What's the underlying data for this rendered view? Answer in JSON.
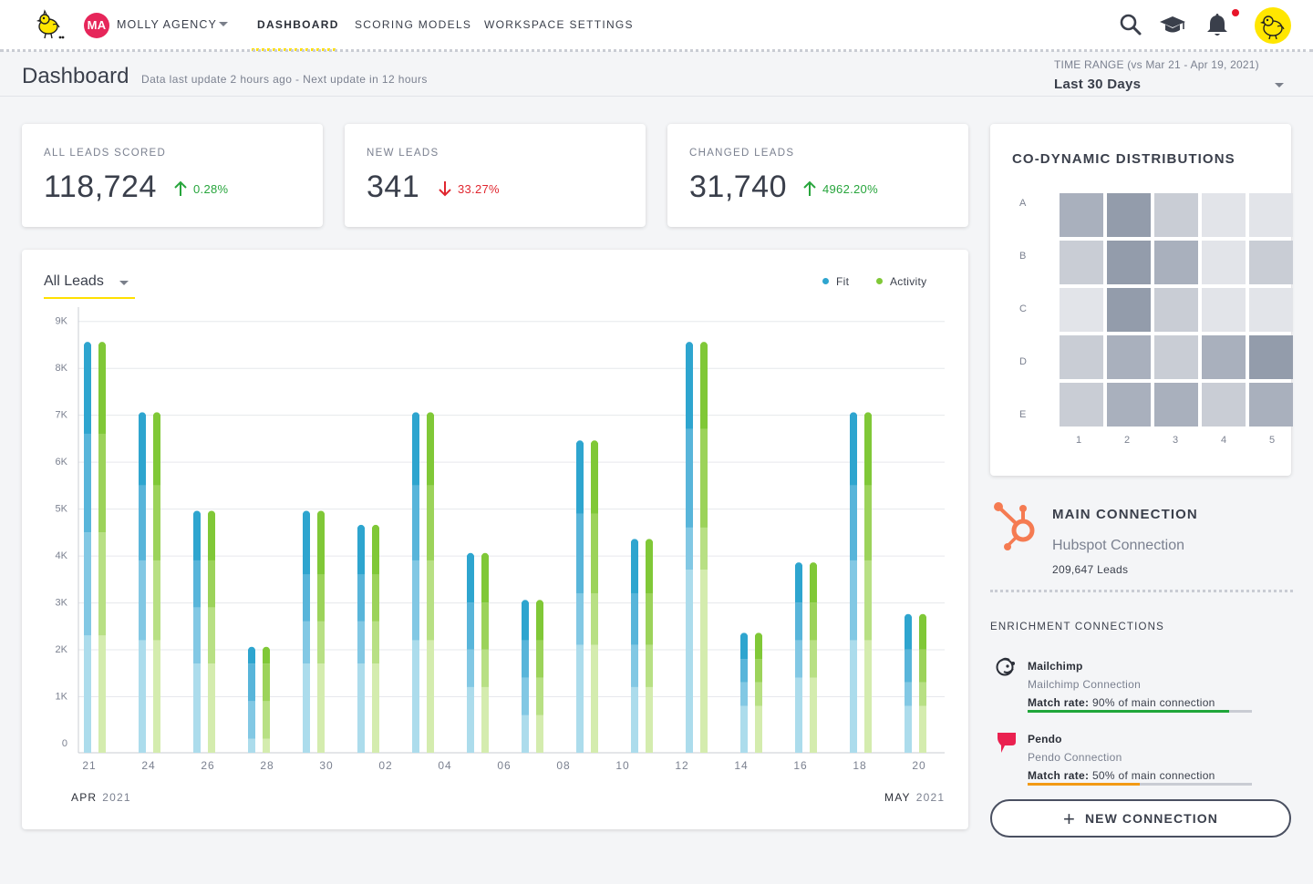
{
  "nav": {
    "agency_initials": "MA",
    "agency_name": "MOLLY AGENCY",
    "tabs": [
      {
        "label": "DASHBOARD",
        "active": true
      },
      {
        "label": "SCORING MODELS",
        "active": false
      },
      {
        "label": "WORKSPACE SETTINGS",
        "active": false
      }
    ],
    "icons": [
      "search-icon",
      "graduation-cap-icon",
      "bell-icon"
    ],
    "notification_dot_color": "#e8152a"
  },
  "header": {
    "title": "Dashboard",
    "subtitle": "Data last update 2 hours ago - Next update in 12 hours",
    "time_range_label": "TIME RANGE (vs Mar 21 - Apr 19, 2021)",
    "time_range_value": "Last 30 Days"
  },
  "stats": [
    {
      "label": "ALL LEADS SCORED",
      "value": "118,724",
      "change": "0.28%",
      "direction": "up"
    },
    {
      "label": "NEW LEADS",
      "value": "341",
      "change": "33.27%",
      "direction": "down"
    },
    {
      "label": "CHANGED LEADS",
      "value": "31,740",
      "change": "4962.20%",
      "direction": "up"
    }
  ],
  "chart_panel": {
    "filter_label": "All Leads",
    "month_start": "APR",
    "month_start_year": "2021",
    "month_end": "MAY",
    "month_end_year": "2021"
  },
  "chart_data": {
    "type": "bar",
    "stacked": true,
    "x_ticks": [
      "21",
      "24",
      "26",
      "28",
      "30",
      "02",
      "04",
      "06",
      "08",
      "10",
      "12",
      "14",
      "16",
      "18",
      "20"
    ],
    "y_ticks": [
      "0",
      "1K",
      "2K",
      "3K",
      "4K",
      "5K",
      "6K",
      "7K",
      "8K",
      "9K"
    ],
    "ylim": [
      0,
      9500
    ],
    "legend": [
      "Fit",
      "Activity"
    ],
    "legend_position": "top-right",
    "colors": {
      "fit": [
        "#acdcec",
        "#82c8e4",
        "#58b5da",
        "#2ea5cf"
      ],
      "activity": [
        "#d4ecae",
        "#b8e084",
        "#9cd35a",
        "#80c837"
      ]
    },
    "series": [
      {
        "name": "Fit",
        "values": [
          [
            2500,
            2200,
            2100,
            1900
          ],
          [
            2400,
            1700,
            1600,
            1500
          ],
          [
            1900,
            1200,
            1000,
            1000
          ],
          [
            300,
            800,
            800,
            300
          ],
          [
            1900,
            900,
            1000,
            1300
          ],
          [
            1900,
            900,
            1000,
            1000
          ],
          [
            2400,
            1700,
            1600,
            1500
          ],
          [
            1400,
            800,
            1000,
            1000
          ],
          [
            800,
            800,
            800,
            800
          ],
          [
            2300,
            1100,
            1700,
            1500
          ],
          [
            1400,
            900,
            1100,
            1100
          ],
          [
            3900,
            900,
            2100,
            1800
          ],
          [
            1000,
            500,
            500,
            500
          ],
          [
            1600,
            800,
            800,
            800
          ],
          [
            2400,
            1700,
            1600,
            1500
          ],
          [
            1000,
            500,
            700,
            700
          ]
        ]
      },
      {
        "name": "Activity",
        "values": [
          [
            2500,
            2200,
            2100,
            1900
          ],
          [
            2400,
            1700,
            1600,
            1500
          ],
          [
            1900,
            1200,
            1000,
            1000
          ],
          [
            300,
            800,
            800,
            300
          ],
          [
            1900,
            900,
            1000,
            1300
          ],
          [
            1900,
            900,
            1000,
            1000
          ],
          [
            2400,
            1700,
            1600,
            1500
          ],
          [
            1400,
            800,
            1000,
            1000
          ],
          [
            800,
            800,
            800,
            800
          ],
          [
            2300,
            1100,
            1700,
            1500
          ],
          [
            1400,
            900,
            1100,
            1100
          ],
          [
            3900,
            900,
            2100,
            1800
          ],
          [
            1000,
            500,
            500,
            500
          ],
          [
            1600,
            800,
            800,
            800
          ],
          [
            2400,
            1700,
            1600,
            1500
          ],
          [
            1000,
            500,
            700,
            700
          ]
        ]
      }
    ]
  },
  "codynamic": {
    "title": "CO-DYNAMIC DISTRIBUTIONS",
    "rows": [
      "A",
      "B",
      "C",
      "D",
      "E"
    ],
    "cols": [
      "1",
      "2",
      "3",
      "4",
      "5"
    ],
    "shades": [
      [
        "#a9b0bd",
        "#939cab",
        "#c9cdd5",
        "#e2e4e9",
        "#e2e4e9"
      ],
      [
        "#c9cdd5",
        "#939cab",
        "#a9b0bd",
        "#e2e4e9",
        "#c9cdd5"
      ],
      [
        "#e2e4e9",
        "#939cab",
        "#c9cdd5",
        "#e2e4e9",
        "#e2e4e9"
      ],
      [
        "#c9cdd5",
        "#a9b0bd",
        "#c9cdd5",
        "#a9b0bd",
        "#939cab"
      ],
      [
        "#c9cdd5",
        "#a9b0bd",
        "#a9b0bd",
        "#c9cdd5",
        "#a9b0bd"
      ]
    ]
  },
  "main_connection": {
    "title": "MAIN CONNECTION",
    "name": "Hubspot Connection",
    "leads": "209,647 Leads",
    "icon": "hubspot-icon"
  },
  "enrichment": {
    "title": "ENRICHMENT CONNECTIONS",
    "items": [
      {
        "name": "Mailchimp",
        "sub": "Mailchimp Connection",
        "match_label": "Match rate:",
        "match_text": " 90% of main connection",
        "rate": 0.9,
        "color": "#1fa63a",
        "icon": "mailchimp-icon"
      },
      {
        "name": "Pendo",
        "sub": "Pendo Connection",
        "match_label": "Match rate:",
        "match_text": " 50% of main connection",
        "rate": 0.5,
        "color": "#f29a14",
        "icon": "pendo-icon"
      }
    ]
  },
  "new_connection_label": "NEW CONNECTION"
}
